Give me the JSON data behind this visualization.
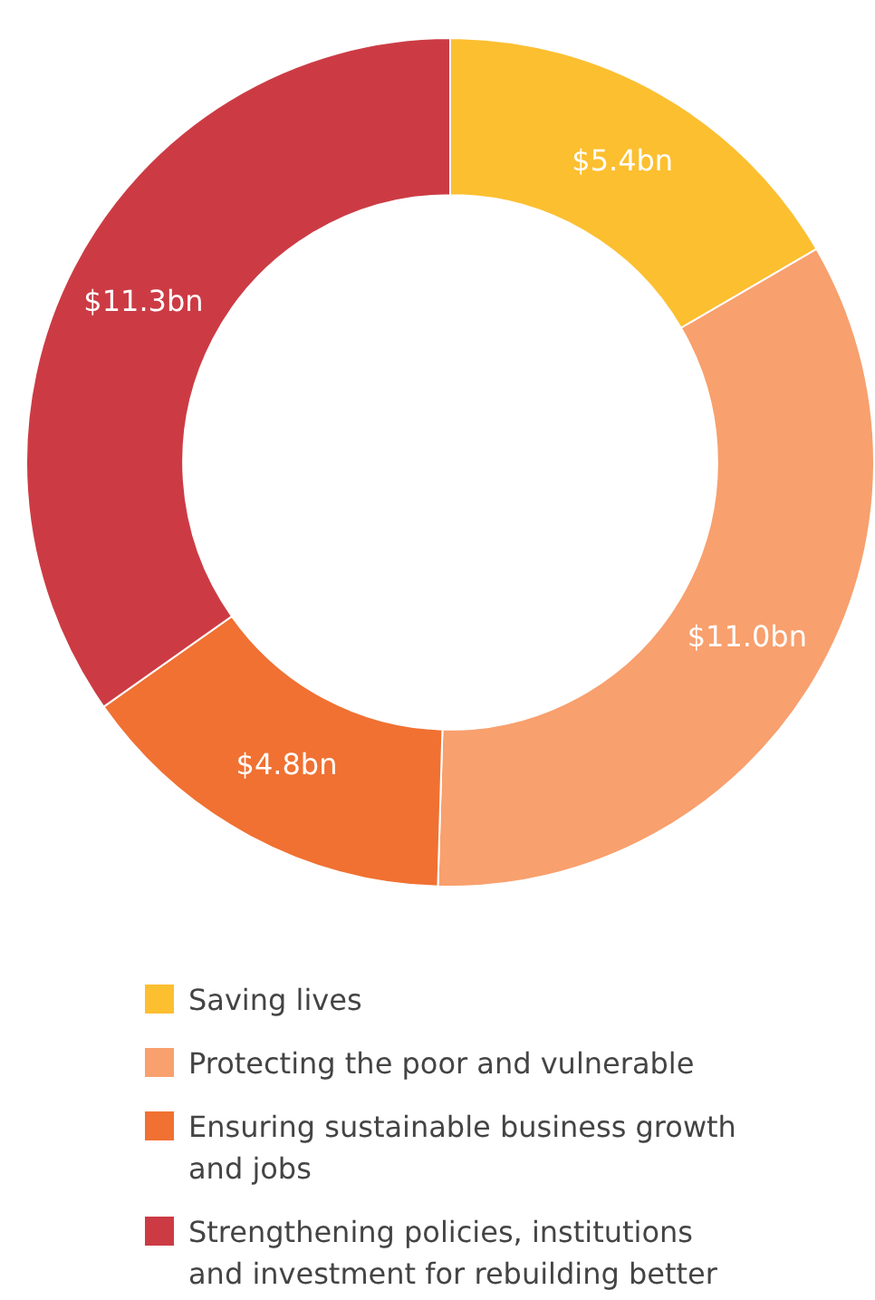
{
  "chart_data": {
    "type": "donut",
    "categories": [
      "Saving lives",
      "Protecting the poor and vulnerable",
      "Ensuring sustainable business growth and jobs",
      "Strengthening policies, institutions and investment for rebuilding better"
    ],
    "values": [
      5.4,
      11.0,
      4.8,
      11.3
    ],
    "colors": [
      "#fcbf30",
      "#f8a06e",
      "#f07132",
      "#cc3b44"
    ],
    "value_labels": [
      "$5.4bn",
      "$11.0bn",
      "$4.8bn",
      "$11.3bn"
    ],
    "legend": "bottom"
  }
}
